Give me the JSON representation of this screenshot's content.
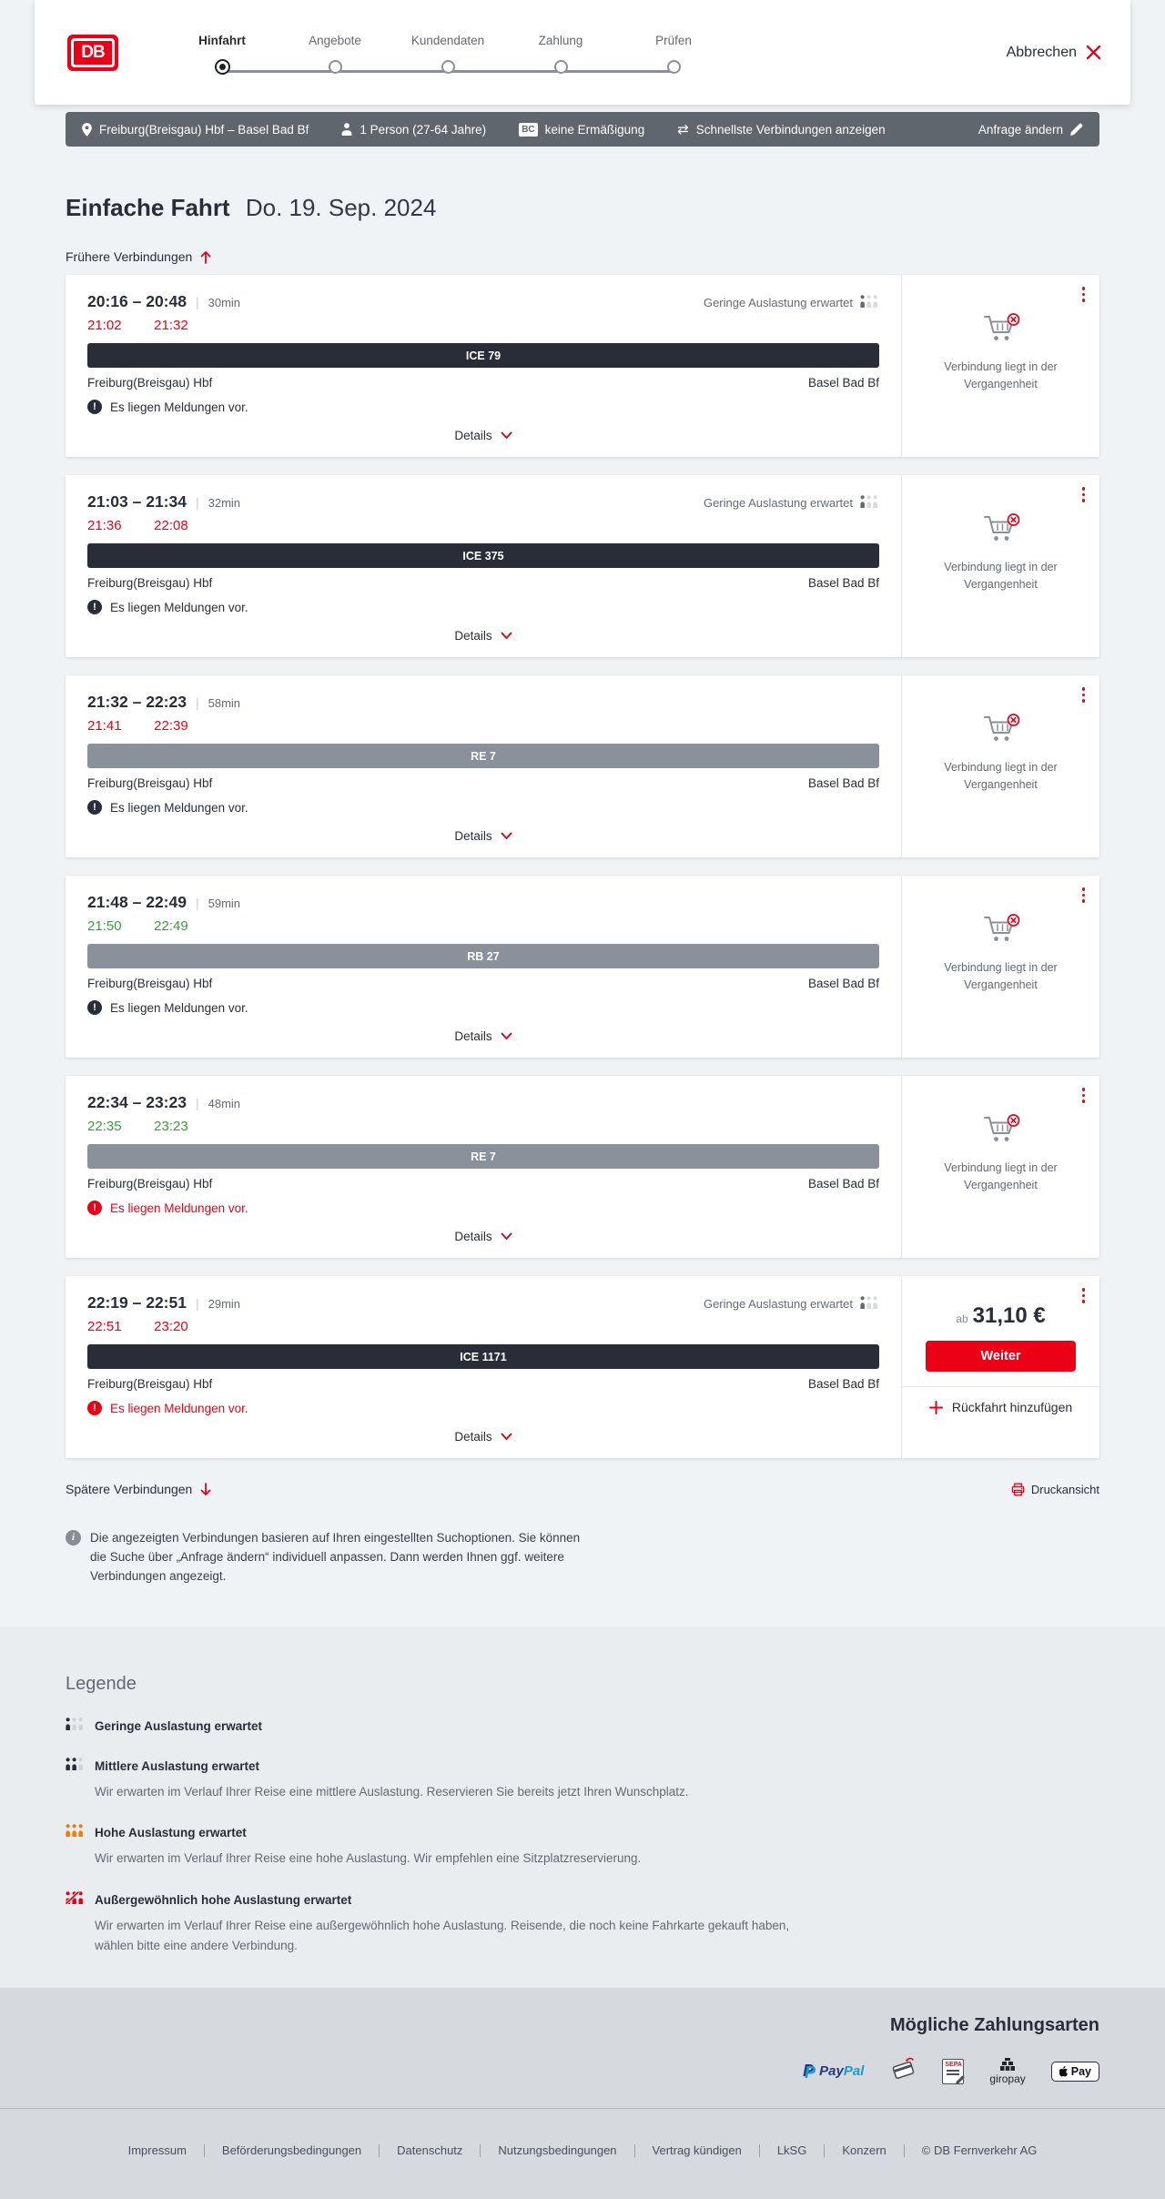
{
  "colors": {
    "brand_red": "#ec0016",
    "coal": "#282d37",
    "grey": "#646973",
    "bar_dark": "#282d37",
    "bar_grey": "#8b919b",
    "ontime_green": "#3c9a40",
    "search_bar_bg": "#5f666e",
    "occupancy_high_orange": "#f07d00"
  },
  "header": {
    "logo": "DB",
    "steps": [
      {
        "label": "Hinfahrt",
        "state": "active"
      },
      {
        "label": "Angebote",
        "state": "upcoming"
      },
      {
        "label": "Kundendaten",
        "state": "upcoming"
      },
      {
        "label": "Zahlung",
        "state": "upcoming"
      },
      {
        "label": "Prüfen",
        "state": "upcoming"
      }
    ],
    "cancel_label": "Abbrechen"
  },
  "search_summary": {
    "route": "Freiburg(Breisgau) Hbf – Basel Bad Bf",
    "passengers": "1 Person (27-64 Jahre)",
    "discount_badge": "BC",
    "discount": "keine Ermäßigung",
    "sort_option": "Schnellste Verbindungen anzeigen",
    "edit_label": "Anfrage ändern"
  },
  "results": {
    "title": "Einfache Fahrt",
    "date": "Do. 19. Sep. 2024",
    "earlier_label": "Frühere Verbindungen",
    "later_label": "Spätere Verbindungen",
    "print_label": "Druckansicht",
    "details_label": "Details",
    "past_label": "Verbindung liegt in der Vergangenheit",
    "info_note": "Die angezeigten Verbindungen basieren auf Ihren eingestellten Suchoptionen. Sie können die Suche über „Anfrage ändern“ individuell anpassen. Dann werden Ihnen ggf. weitere Verbindungen angezeigt.",
    "connections": [
      {
        "depart": "20:16",
        "arrive": "20:48",
        "duration": "30min",
        "rt_depart": "21:02",
        "rt_arrive": "21:32",
        "rt_status": "delayed",
        "train": "ICE 79",
        "train_style": "dark",
        "origin": "Freiburg(Breisgau) Hbf",
        "destination": "Basel Bad Bf",
        "message": "Es liegen Meldungen vor.",
        "message_severity": "info",
        "occupancy": "Geringe Auslastung erwartet",
        "side": "past"
      },
      {
        "depart": "21:03",
        "arrive": "21:34",
        "duration": "32min",
        "rt_depart": "21:36",
        "rt_arrive": "22:08",
        "rt_status": "delayed",
        "train": "ICE 375",
        "train_style": "dark",
        "origin": "Freiburg(Breisgau) Hbf",
        "destination": "Basel Bad Bf",
        "message": "Es liegen Meldungen vor.",
        "message_severity": "info",
        "occupancy": "Geringe Auslastung erwartet",
        "side": "past"
      },
      {
        "depart": "21:32",
        "arrive": "22:23",
        "duration": "58min",
        "rt_depart": "21:41",
        "rt_arrive": "22:39",
        "rt_status": "delayed",
        "train": "RE 7",
        "train_style": "grey",
        "origin": "Freiburg(Breisgau) Hbf",
        "destination": "Basel Bad Bf",
        "message": "Es liegen Meldungen vor.",
        "message_severity": "info",
        "occupancy": null,
        "side": "past"
      },
      {
        "depart": "21:48",
        "arrive": "22:49",
        "duration": "59min",
        "rt_depart": "21:50",
        "rt_arrive": "22:49",
        "rt_status": "ontime",
        "train": "RB 27",
        "train_style": "grey",
        "origin": "Freiburg(Breisgau) Hbf",
        "destination": "Basel Bad Bf",
        "message": "Es liegen Meldungen vor.",
        "message_severity": "info",
        "occupancy": null,
        "side": "past"
      },
      {
        "depart": "22:34",
        "arrive": "23:23",
        "duration": "48min",
        "rt_depart": "22:35",
        "rt_arrive": "23:23",
        "rt_status": "ontime",
        "train": "RE 7",
        "train_style": "grey",
        "origin": "Freiburg(Breisgau) Hbf",
        "destination": "Basel Bad Bf",
        "message": "Es liegen Meldungen vor.",
        "message_severity": "alert",
        "occupancy": null,
        "side": "past"
      },
      {
        "depart": "22:19",
        "arrive": "22:51",
        "duration": "29min",
        "rt_depart": "22:51",
        "rt_arrive": "23:20",
        "rt_status": "delayed",
        "train": "ICE 1171",
        "train_style": "dark",
        "origin": "Freiburg(Breisgau) Hbf",
        "destination": "Basel Bad Bf",
        "message": "Es liegen Meldungen vor.",
        "message_severity": "alert",
        "occupancy": "Geringe Auslastung erwartet",
        "side": "price"
      }
    ]
  },
  "price_panel": {
    "prefix": "ab",
    "price": "31,10 €",
    "cta": "Weiter",
    "add_return": "Rückfahrt hinzufügen"
  },
  "legend": {
    "title": "Legende",
    "items": [
      {
        "label": "Geringe Auslastung erwartet",
        "desc": "",
        "icon": {
          "active": 1,
          "color": "#282d37",
          "slash": false
        }
      },
      {
        "label": "Mittlere Auslastung erwartet",
        "desc": "Wir erwarten im Verlauf Ihrer Reise eine mittlere Auslastung. Reservieren Sie bereits jetzt Ihren Wunschplatz.",
        "icon": {
          "active": 2,
          "color": "#282d37",
          "slash": false
        }
      },
      {
        "label": "Hohe Auslastung erwartet",
        "desc": "Wir erwarten im Verlauf Ihrer Reise eine hohe Auslastung. Wir empfehlen eine Sitzplatzreservierung.",
        "icon": {
          "active": 3,
          "color": "#f07d00",
          "slash": false
        }
      },
      {
        "label": "Außergewöhnlich hohe Auslastung erwartet",
        "desc": "Wir erwarten im Verlauf Ihrer Reise eine außergewöhnlich hohe Auslastung. Reisende, die noch keine Fahrkarte gekauft haben, wählen bitte eine andere Verbindung.",
        "icon": {
          "active": 3,
          "color": "#ec0016",
          "slash": true
        }
      }
    ]
  },
  "payments": {
    "title": "Mögliche Zahlungsarten",
    "methods": [
      {
        "id": "paypal",
        "icon_name": "paypal-logo",
        "text": "PayPal"
      },
      {
        "id": "creditcard",
        "icon_name": "credit-card-icon",
        "text": ""
      },
      {
        "id": "sepa",
        "icon_name": "sepa-lastschrift-icon",
        "text": "SEPA"
      },
      {
        "id": "giropay",
        "icon_name": "giropay-logo",
        "text": "giropay"
      },
      {
        "id": "applepay",
        "icon_name": "apple-pay-badge",
        "text": "Pay"
      }
    ]
  },
  "footer": {
    "links": [
      "Impressum",
      "Beförderungsbedingungen",
      "Datenschutz",
      "Nutzungsbedingungen",
      "Vertrag kündigen",
      "LkSG",
      "Konzern"
    ],
    "copyright": "© DB Fernverkehr AG"
  }
}
